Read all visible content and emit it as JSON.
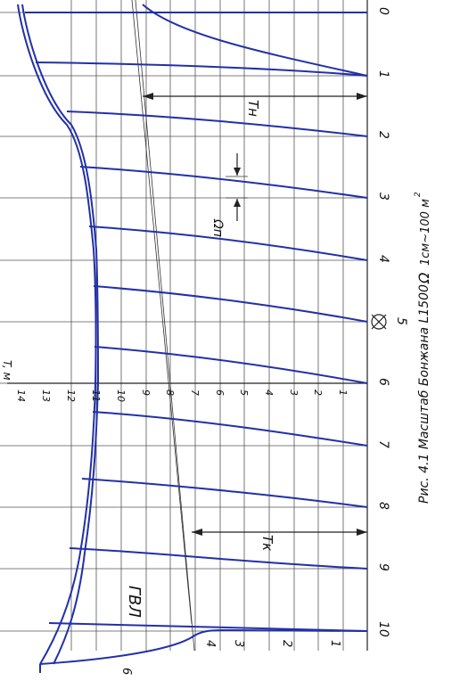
{
  "drawing": {
    "caption": "Рис. 4.1 Масштаб Бонжана L1500",
    "omega_label": "Ω",
    "scale_note": "1см~100 м",
    "scale_note_sup": "2",
    "gvl_label": "ГВЛ",
    "tn_label": "Тн",
    "tk_label": "Тк",
    "omega_sub_label": "Ωп",
    "t_axis_label": "T, м",
    "frame_numbers": [
      "0",
      "1",
      "2",
      "3",
      "4",
      "5",
      "6",
      "7",
      "8",
      "9",
      "10"
    ],
    "t_scale_numbers": [
      "1",
      "2",
      "3",
      "4",
      "5",
      "6",
      "7",
      "8",
      "9",
      "10",
      "11",
      "12",
      "13",
      "14"
    ],
    "stern_numbers": [
      "1",
      "2",
      "3",
      "4",
      "6"
    ]
  },
  "colors": {
    "curve_blue": "#2230a8",
    "grid_gray": "#555555"
  }
}
